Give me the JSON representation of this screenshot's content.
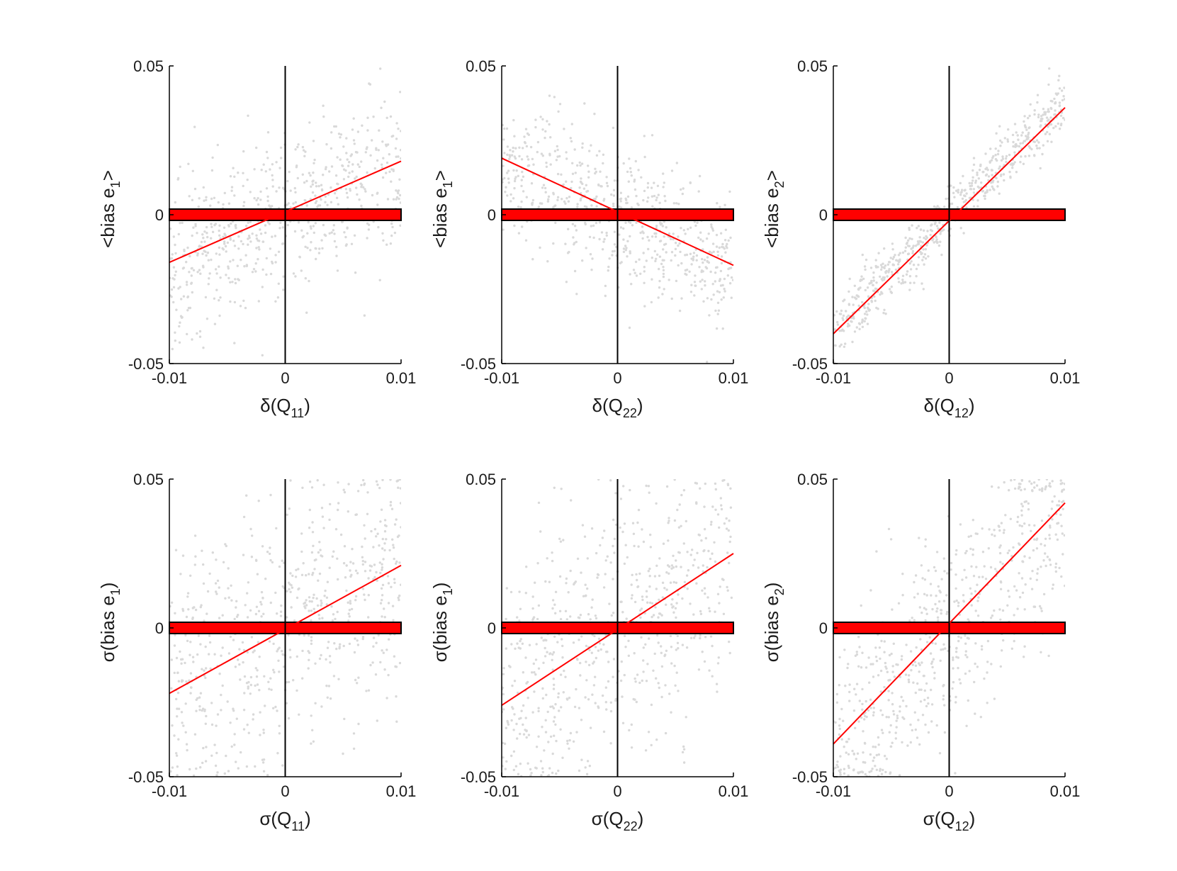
{
  "figure": {
    "panels_layout": "2 rows x 3 columns",
    "colors": {
      "scatter": "#d9d9d9",
      "fit_line": "#ff0000",
      "band_fill": "#ff0000",
      "band_edge": "#000000",
      "axis": "#000000"
    }
  },
  "chart_data": [
    {
      "type": "scatter",
      "ylabel": {
        "prefix": "<bias e",
        "sub": "1",
        "suffix": ">"
      },
      "xlabel": {
        "prefix": "δ(Q",
        "sub": "11",
        "suffix": ")"
      },
      "xlim": [
        -0.01,
        0.01
      ],
      "ylim": [
        -0.05,
        0.05
      ],
      "x_ticks": [
        "-0.01",
        "0",
        "0.01"
      ],
      "y_ticks": [
        "-0.05",
        "0",
        "0.05"
      ],
      "fit_line": {
        "x": [
          -0.01,
          0.01
        ],
        "y": [
          -0.016,
          0.018
        ]
      },
      "zero_band": {
        "y": [
          -0.0019,
          0.0019
        ]
      },
      "scatter_cloud": {
        "n": 650,
        "slope": 1.7,
        "spread": 0.013
      }
    },
    {
      "type": "scatter",
      "ylabel": {
        "prefix": "<bias e",
        "sub": "1",
        "suffix": ">"
      },
      "xlabel": {
        "prefix": "δ(Q",
        "sub": "22",
        "suffix": ")"
      },
      "xlim": [
        -0.01,
        0.01
      ],
      "ylim": [
        -0.05,
        0.05
      ],
      "x_ticks": [
        "-0.01",
        "0",
        "0.01"
      ],
      "y_ticks": [
        "-0.05",
        "0",
        "0.05"
      ],
      "fit_line": {
        "x": [
          -0.01,
          0.01
        ],
        "y": [
          0.019,
          -0.017
        ]
      },
      "zero_band": {
        "y": [
          -0.0019,
          0.0019
        ]
      },
      "scatter_cloud": {
        "n": 650,
        "slope": -1.8,
        "spread": 0.012
      }
    },
    {
      "type": "scatter",
      "ylabel": {
        "prefix": "<bias e",
        "sub": "2",
        "suffix": ">"
      },
      "xlabel": {
        "prefix": "δ(Q",
        "sub": "12",
        "suffix": ")"
      },
      "xlim": [
        -0.01,
        0.01
      ],
      "ylim": [
        -0.05,
        0.05
      ],
      "x_ticks": [
        "-0.01",
        "0",
        "0.01"
      ],
      "y_ticks": [
        "-0.05",
        "0",
        "0.05"
      ],
      "fit_line": {
        "x": [
          -0.01,
          0.01
        ],
        "y": [
          -0.04,
          0.036
        ]
      },
      "zero_band": {
        "y": [
          -0.0019,
          0.0019
        ]
      },
      "scatter_cloud": {
        "n": 650,
        "slope": 3.8,
        "spread": 0.005
      }
    },
    {
      "type": "scatter",
      "ylabel": {
        "prefix": "σ(bias e",
        "sub": "1",
        "suffix": ")"
      },
      "xlabel": {
        "prefix": "σ(Q",
        "sub": "11",
        "suffix": ")"
      },
      "xlim": [
        -0.01,
        0.01
      ],
      "ylim": [
        -0.05,
        0.05
      ],
      "x_ticks": [
        "-0.01",
        "0",
        "0.01"
      ],
      "y_ticks": [
        "-0.05",
        "0",
        "0.05"
      ],
      "fit_line": {
        "x": [
          -0.01,
          0.01
        ],
        "y": [
          -0.022,
          0.021
        ]
      },
      "zero_band": {
        "y": [
          -0.0019,
          0.0019
        ]
      },
      "scatter_cloud": {
        "n": 650,
        "slope": 2.1,
        "spread": 0.022
      }
    },
    {
      "type": "scatter",
      "ylabel": {
        "prefix": "σ(bias e",
        "sub": "1",
        "suffix": ")"
      },
      "xlabel": {
        "prefix": "σ(Q",
        "sub": "22",
        "suffix": ")"
      },
      "xlim": [
        -0.01,
        0.01
      ],
      "ylim": [
        -0.05,
        0.05
      ],
      "x_ticks": [
        "-0.01",
        "0",
        "0.01"
      ],
      "y_ticks": [
        "-0.05",
        "0",
        "0.05"
      ],
      "fit_line": {
        "x": [
          -0.01,
          0.01
        ],
        "y": [
          -0.026,
          0.025
        ]
      },
      "zero_band": {
        "y": [
          -0.0019,
          0.0019
        ]
      },
      "scatter_cloud": {
        "n": 650,
        "slope": 2.5,
        "spread": 0.022
      }
    },
    {
      "type": "scatter",
      "ylabel": {
        "prefix": "σ(bias e",
        "sub": "2",
        "suffix": ")"
      },
      "xlabel": {
        "prefix": "σ(Q",
        "sub": "12",
        "suffix": ")"
      },
      "xlim": [
        -0.01,
        0.01
      ],
      "ylim": [
        -0.05,
        0.05
      ],
      "x_ticks": [
        "-0.01",
        "0",
        "0.01"
      ],
      "y_ticks": [
        "-0.05",
        "0",
        "0.05"
      ],
      "fit_line": {
        "x": [
          -0.01,
          0.01
        ],
        "y": [
          -0.039,
          0.042
        ]
      },
      "zero_band": {
        "y": [
          -0.0019,
          0.0019
        ]
      },
      "scatter_cloud": {
        "n": 650,
        "slope": 4.0,
        "spread": 0.018
      }
    }
  ]
}
